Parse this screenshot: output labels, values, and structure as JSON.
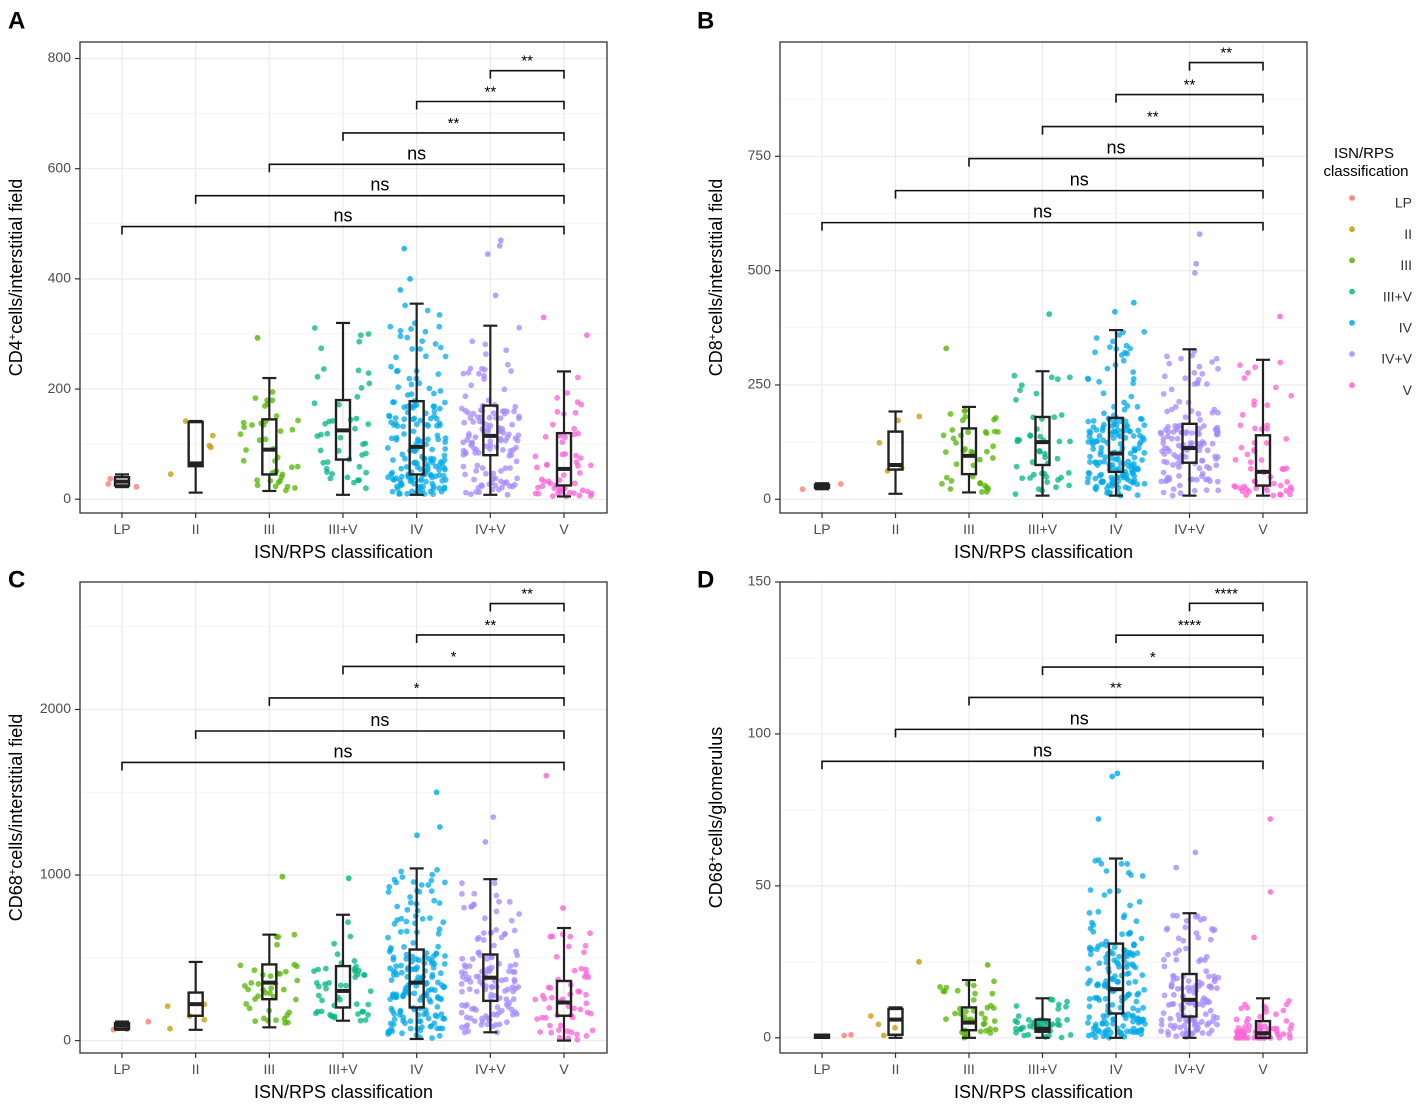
{
  "x_categories": [
    "LP",
    "II",
    "III",
    "III+V",
    "IV",
    "IV+V",
    "V"
  ],
  "colors": {
    "LP": "#F8766D",
    "II": "#C49A00",
    "III": "#53B400",
    "III+V": "#00B685",
    "IV": "#00A9E8",
    "IV+V": "#A58AFF",
    "V": "#FB61D7"
  },
  "legend": {
    "title_line1": "ISN/RPS",
    "title_line2": "classification",
    "entries": [
      "LP",
      "II",
      "III",
      "III+V",
      "IV",
      "IV+V",
      "V"
    ]
  },
  "chart_data": [
    {
      "panel": "A",
      "type": "box+jitter",
      "xlabel": "ISN/RPS classification",
      "ylabel": "CD4+cells/interstitial field",
      "ylabel_main": "CD4",
      "ylabel_sup": "+",
      "ylabel_rest": "cells/interstitial field",
      "ylim": [
        -25,
        830
      ],
      "yticks": [
        0,
        200,
        400,
        600,
        800
      ],
      "boxes": [
        {
          "group": "LP",
          "min": 22,
          "q1": 25,
          "median": 32,
          "q3": 40,
          "max": 45
        },
        {
          "group": "II",
          "min": 12,
          "q1": 60,
          "median": 65,
          "q3": 140,
          "max": 142
        },
        {
          "group": "III",
          "min": 15,
          "q1": 45,
          "median": 90,
          "q3": 145,
          "max": 220
        },
        {
          "group": "III+V",
          "min": 8,
          "q1": 72,
          "median": 125,
          "q3": 180,
          "max": 320
        },
        {
          "group": "IV",
          "min": 8,
          "q1": 45,
          "median": 95,
          "q3": 178,
          "max": 355
        },
        {
          "group": "IV+V",
          "min": 8,
          "q1": 80,
          "median": 115,
          "q3": 170,
          "max": 315
        },
        {
          "group": "V",
          "min": 5,
          "q1": 25,
          "median": 55,
          "q3": 120,
          "max": 232
        }
      ],
      "point_counts": {
        "LP": 3,
        "II": 5,
        "III": 40,
        "III+V": 45,
        "IV": 180,
        "IV+V": 130,
        "V": 55
      },
      "outliers": [
        {
          "group": "IV",
          "value": 400
        },
        {
          "group": "IV",
          "value": 455
        },
        {
          "group": "IV",
          "value": 380
        },
        {
          "group": "IV+V",
          "value": 470
        },
        {
          "group": "IV+V",
          "value": 460
        },
        {
          "group": "IV+V",
          "value": 445
        },
        {
          "group": "IV+V",
          "value": 370
        },
        {
          "group": "V",
          "value": 330
        },
        {
          "group": "V",
          "value": 298
        },
        {
          "group": "III",
          "value": 293
        }
      ],
      "comparisons": [
        {
          "from": "LP",
          "to": "V",
          "y": 495,
          "label": "ns"
        },
        {
          "from": "II",
          "to": "V",
          "y": 551,
          "label": "ns"
        },
        {
          "from": "III",
          "to": "V",
          "y": 608,
          "label": "ns"
        },
        {
          "from": "III+V",
          "to": "V",
          "y": 665,
          "label": "**"
        },
        {
          "from": "IV",
          "to": "V",
          "y": 722,
          "label": "**"
        },
        {
          "from": "IV+V",
          "to": "V",
          "y": 778,
          "label": "**"
        }
      ]
    },
    {
      "panel": "B",
      "type": "box+jitter",
      "xlabel": "ISN/RPS classification",
      "ylabel": "CD8+cells/interstitial field",
      "ylabel_main": "CD8",
      "ylabel_sup": "+",
      "ylabel_rest": "cells/interstitial field",
      "ylim": [
        -30,
        1000
      ],
      "yticks": [
        0,
        250,
        500,
        750
      ],
      "boxes": [
        {
          "group": "LP",
          "min": 22,
          "q1": 25,
          "median": 28,
          "q3": 32,
          "max": 35
        },
        {
          "group": "II",
          "min": 12,
          "q1": 65,
          "median": 75,
          "q3": 148,
          "max": 192
        },
        {
          "group": "III",
          "min": 15,
          "q1": 55,
          "median": 95,
          "q3": 155,
          "max": 202
        },
        {
          "group": "III+V",
          "min": 8,
          "q1": 75,
          "median": 125,
          "q3": 180,
          "max": 280
        },
        {
          "group": "IV",
          "min": 8,
          "q1": 60,
          "median": 100,
          "q3": 178,
          "max": 370
        },
        {
          "group": "IV+V",
          "min": 8,
          "q1": 80,
          "median": 112,
          "q3": 165,
          "max": 328
        },
        {
          "group": "V",
          "min": 8,
          "q1": 30,
          "median": 60,
          "q3": 140,
          "max": 305
        }
      ],
      "point_counts": {
        "LP": 2,
        "II": 5,
        "III": 40,
        "III+V": 45,
        "IV": 180,
        "IV+V": 130,
        "V": 55
      },
      "outliers": [
        {
          "group": "IV",
          "value": 430
        },
        {
          "group": "IV",
          "value": 410
        },
        {
          "group": "IV+V",
          "value": 580
        },
        {
          "group": "IV+V",
          "value": 515
        },
        {
          "group": "IV+V",
          "value": 495
        },
        {
          "group": "V",
          "value": 400
        },
        {
          "group": "III+V",
          "value": 405
        },
        {
          "group": "III",
          "value": 330
        }
      ],
      "comparisons": [
        {
          "from": "LP",
          "to": "V",
          "y": 605,
          "label": "ns"
        },
        {
          "from": "II",
          "to": "V",
          "y": 675,
          "label": "ns"
        },
        {
          "from": "III",
          "to": "V",
          "y": 745,
          "label": "ns"
        },
        {
          "from": "III+V",
          "to": "V",
          "y": 815,
          "label": "**"
        },
        {
          "from": "IV",
          "to": "V",
          "y": 885,
          "label": "**"
        },
        {
          "from": "IV+V",
          "to": "V",
          "y": 955,
          "label": "**"
        }
      ]
    },
    {
      "panel": "C",
      "type": "box+jitter",
      "xlabel": "ISN/RPS classification",
      "ylabel": "CD68+cells/interstitial field",
      "ylabel_main": "CD68",
      "ylabel_sup": "+",
      "ylabel_rest": "cells/interstitial field",
      "ylim": [
        -75,
        2770
      ],
      "yticks": [
        0,
        1000,
        2000
      ],
      "boxes": [
        {
          "group": "LP",
          "min": 65,
          "q1": 70,
          "median": 90,
          "q3": 105,
          "max": 115
        },
        {
          "group": "II",
          "min": 65,
          "q1": 150,
          "median": 220,
          "q3": 290,
          "max": 475
        },
        {
          "group": "III",
          "min": 80,
          "q1": 250,
          "median": 350,
          "q3": 460,
          "max": 640
        },
        {
          "group": "III+V",
          "min": 120,
          "q1": 200,
          "median": 300,
          "q3": 450,
          "max": 760
        },
        {
          "group": "IV",
          "min": 10,
          "q1": 200,
          "median": 350,
          "q3": 550,
          "max": 1040
        },
        {
          "group": "IV+V",
          "min": 50,
          "q1": 240,
          "median": 380,
          "q3": 520,
          "max": 975
        },
        {
          "group": "V",
          "min": 0,
          "q1": 150,
          "median": 230,
          "q3": 360,
          "max": 680
        }
      ],
      "point_counts": {
        "LP": 3,
        "II": 5,
        "III": 40,
        "III+V": 45,
        "IV": 180,
        "IV+V": 130,
        "V": 55
      },
      "outliers": [
        {
          "group": "IV",
          "value": 1500
        },
        {
          "group": "IV",
          "value": 1290
        },
        {
          "group": "IV",
          "value": 1240
        },
        {
          "group": "IV+V",
          "value": 1350
        },
        {
          "group": "IV+V",
          "value": 1200
        },
        {
          "group": "V",
          "value": 1600
        },
        {
          "group": "III",
          "value": 990
        },
        {
          "group": "III+V",
          "value": 980
        },
        {
          "group": "V",
          "value": 800
        }
      ],
      "comparisons": [
        {
          "from": "LP",
          "to": "V",
          "y": 1680,
          "label": "ns"
        },
        {
          "from": "II",
          "to": "V",
          "y": 1870,
          "label": "ns"
        },
        {
          "from": "III",
          "to": "V",
          "y": 2070,
          "label": "*"
        },
        {
          "from": "III+V",
          "to": "V",
          "y": 2260,
          "label": "*"
        },
        {
          "from": "IV",
          "to": "V",
          "y": 2450,
          "label": "**"
        },
        {
          "from": "IV+V",
          "to": "V",
          "y": 2640,
          "label": "**"
        }
      ]
    },
    {
      "panel": "D",
      "type": "box+jitter",
      "xlabel": "ISN/RPS classification",
      "ylabel": "CD68+cells/glomerulus",
      "ylabel_main": "CD68",
      "ylabel_sup": "+",
      "ylabel_rest": "cells/glomerulus",
      "ylim": [
        -5,
        150
      ],
      "yticks": [
        0,
        50,
        100,
        150
      ],
      "boxes": [
        {
          "group": "LP",
          "min": 0,
          "q1": 0,
          "median": 0.5,
          "q3": 1,
          "max": 1
        },
        {
          "group": "II",
          "min": 0,
          "q1": 1,
          "median": 6,
          "q3": 9.5,
          "max": 10
        },
        {
          "group": "III",
          "min": 0,
          "q1": 2.5,
          "median": 5,
          "q3": 10,
          "max": 19
        },
        {
          "group": "III+V",
          "min": 0,
          "q1": 2,
          "median": 3,
          "q3": 6,
          "max": 13
        },
        {
          "group": "IV",
          "min": 0,
          "q1": 8,
          "median": 16,
          "q3": 31,
          "max": 59
        },
        {
          "group": "IV+V",
          "min": 0,
          "q1": 7,
          "median": 12.5,
          "q3": 21,
          "max": 41
        },
        {
          "group": "V",
          "min": 0,
          "q1": 0,
          "median": 1.5,
          "q3": 5.5,
          "max": 13
        }
      ],
      "point_counts": {
        "LP": 2,
        "II": 4,
        "III": 40,
        "III+V": 45,
        "IV": 180,
        "IV+V": 130,
        "V": 60
      },
      "outliers": [
        {
          "group": "IV",
          "value": 87
        },
        {
          "group": "IV",
          "value": 86
        },
        {
          "group": "IV",
          "value": 72
        },
        {
          "group": "IV+V",
          "value": 61
        },
        {
          "group": "IV+V",
          "value": 56
        },
        {
          "group": "V",
          "value": 72
        },
        {
          "group": "V",
          "value": 48
        },
        {
          "group": "V",
          "value": 33
        },
        {
          "group": "II",
          "value": 25
        },
        {
          "group": "III",
          "value": 24
        }
      ],
      "comparisons": [
        {
          "from": "LP",
          "to": "V",
          "y": 91,
          "label": "ns"
        },
        {
          "from": "II",
          "to": "V",
          "y": 101.5,
          "label": "ns"
        },
        {
          "from": "III",
          "to": "V",
          "y": 112,
          "label": "**"
        },
        {
          "from": "III+V",
          "to": "V",
          "y": 122,
          "label": "*"
        },
        {
          "from": "IV",
          "to": "V",
          "y": 132.5,
          "label": "****"
        },
        {
          "from": "IV+V",
          "to": "V",
          "y": 143,
          "label": "****"
        }
      ]
    }
  ]
}
